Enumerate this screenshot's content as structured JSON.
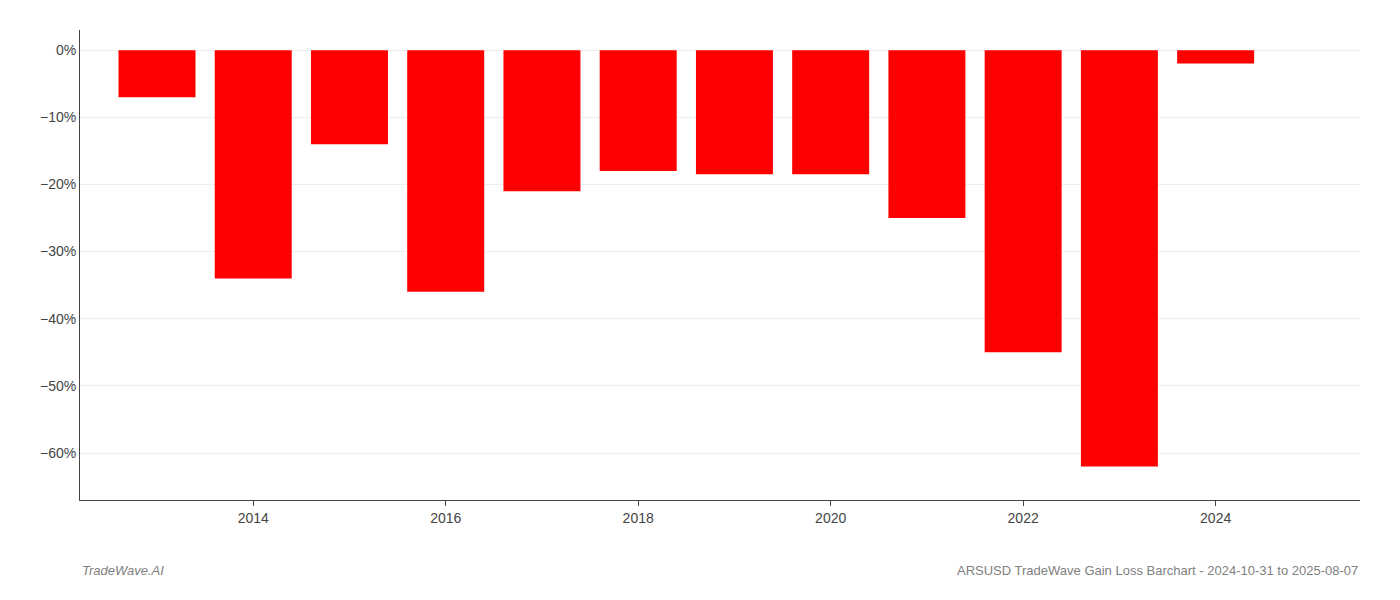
{
  "chart_data": {
    "type": "bar",
    "x": [
      2013,
      2014,
      2015,
      2016,
      2017,
      2018,
      2019,
      2020,
      2021,
      2022,
      2023,
      2024
    ],
    "values": [
      -7.0,
      -34.0,
      -14.0,
      -36.0,
      -21.0,
      -18.0,
      -18.5,
      -18.5,
      -25.0,
      -45.0,
      -62.0,
      -2.0
    ],
    "color": "#ff0000",
    "xlim": [
      2012.2,
      2025.5
    ],
    "xticks": [
      2014,
      2016,
      2018,
      2020,
      2022,
      2024
    ],
    "ylim": [
      -67,
      3
    ],
    "yticks": [
      {
        "value": 0,
        "label": "0%"
      },
      {
        "value": -10,
        "label": "−10%"
      },
      {
        "value": -20,
        "label": "−20%"
      },
      {
        "value": -30,
        "label": "−30%"
      },
      {
        "value": -40,
        "label": "−40%"
      },
      {
        "value": -50,
        "label": "−50%"
      },
      {
        "value": -60,
        "label": "−60%"
      }
    ],
    "grid": true,
    "annotations": [
      "TradeWave.AI",
      "ARSUSD TradeWave Gain Loss Barchart - 2024-10-31 to 2025-08-07"
    ]
  }
}
